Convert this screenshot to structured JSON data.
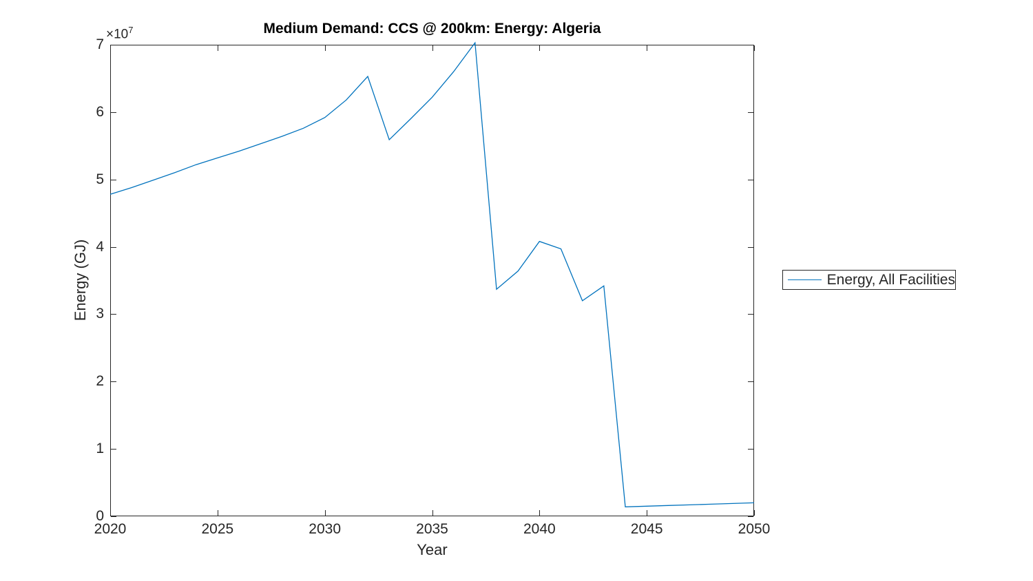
{
  "figure": {
    "title": "Medium Demand: CCS @ 200km: Energy: Algeria",
    "offset_base": "×10",
    "offset_exponent": "7"
  },
  "chart_data": {
    "type": "line",
    "title": "Medium Demand: CCS @ 200km: Energy: Algeria",
    "xlabel": "Year",
    "ylabel": "Energy (GJ)",
    "xlim": [
      2020,
      2050
    ],
    "ylim": [
      0,
      70000000
    ],
    "grid": false,
    "legend_position": "outside-right",
    "x_tick_values": [
      2020,
      2025,
      2030,
      2035,
      2040,
      2045,
      2050
    ],
    "x_tick_labels": [
      "2020",
      "2025",
      "2030",
      "2035",
      "2040",
      "2045",
      "2050"
    ],
    "y_tick_values": [
      0,
      10000000,
      20000000,
      30000000,
      40000000,
      50000000,
      60000000,
      70000000
    ],
    "y_tick_labels": [
      "0",
      "1",
      "2",
      "3",
      "4",
      "5",
      "6",
      "7"
    ],
    "y_axis_multiplier_label": "×10^7",
    "series": [
      {
        "name": "Energy, All Facilities",
        "color": "#0072BD",
        "x": [
          2020,
          2021,
          2022,
          2023,
          2024,
          2025,
          2026,
          2027,
          2028,
          2029,
          2030,
          2031,
          2032,
          2033,
          2034,
          2035,
          2036,
          2037,
          2038,
          2039,
          2040,
          2041,
          2042,
          2043,
          2044,
          2045,
          2046,
          2047,
          2048,
          2049,
          2050
        ],
        "y": [
          47800000,
          48800000,
          49900000,
          51000000,
          52200000,
          53200000,
          54200000,
          55300000,
          56400000,
          57600000,
          59200000,
          61800000,
          65300000,
          55900000,
          59000000,
          62200000,
          66000000,
          70300000,
          33700000,
          36400000,
          40800000,
          39700000,
          32000000,
          34200000,
          1400000,
          1500000,
          1600000,
          1700000,
          1800000,
          1900000,
          2000000
        ]
      }
    ]
  },
  "legend": {
    "items": [
      {
        "label": "Energy, All Facilities",
        "color": "#0072BD"
      }
    ]
  },
  "style": {
    "axis_color": "#262626",
    "background": "#ffffff"
  }
}
